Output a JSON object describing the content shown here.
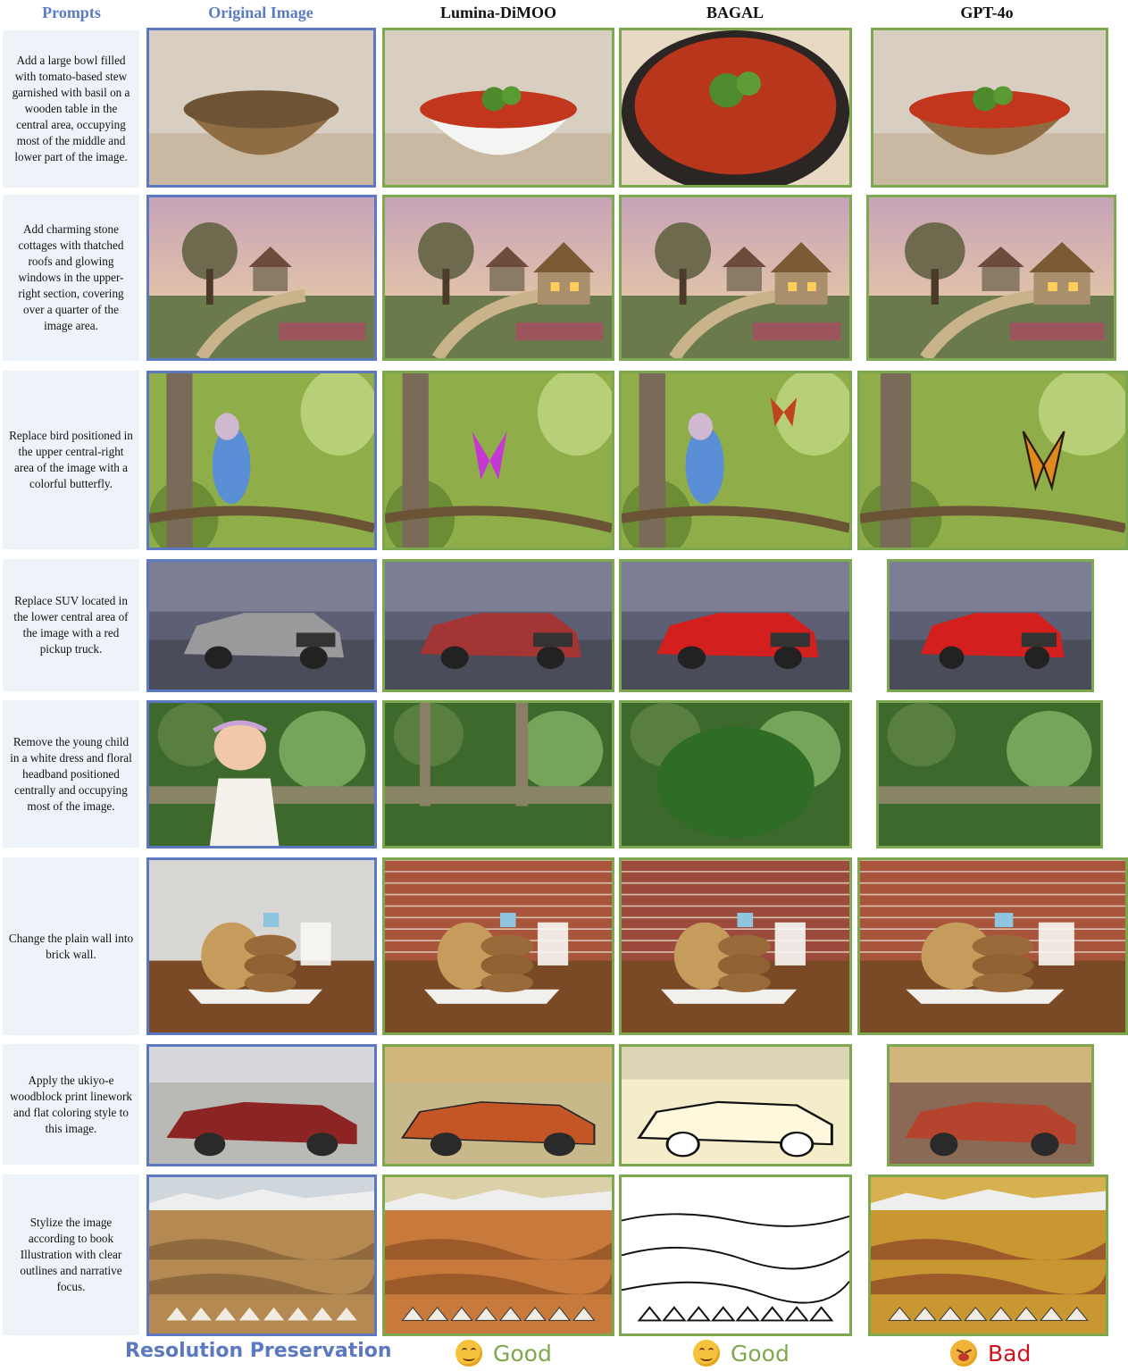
{
  "headers": {
    "prompts": "Prompts",
    "original": "Original Image",
    "models": [
      "Lumina-DiMOO",
      "BAGAL",
      "GPT-4o"
    ]
  },
  "rows": [
    {
      "prompt": "Add a large bowl filled with tomato-based stew garnished with basil on a wooden table in the central area, occupying most of the middle and lower part of the image.",
      "scene": "bowl"
    },
    {
      "prompt": "Add charming stone cottages with thatched roofs and glowing windows in the upper-right section, covering over a quarter of the image area.",
      "scene": "cottage"
    },
    {
      "prompt": "Replace bird positioned in the upper central-right area of the image with a colorful butterfly.",
      "scene": "bird"
    },
    {
      "prompt": "Replace SUV located in the lower central area of the image with a red pickup truck.",
      "scene": "car"
    },
    {
      "prompt": "Remove the young child in a white dress and floral headband positioned centrally and occupying most of the image.",
      "scene": "child"
    },
    {
      "prompt": "Change the plain wall into brick wall.",
      "scene": "cookies"
    },
    {
      "prompt": "Apply the ukiyo-e woodblock print linework and flat coloring style to this image.",
      "scene": "classic-car"
    },
    {
      "prompt": "Stylize the image according to book Illustration with clear outlines and narrative focus.",
      "scene": "desert"
    }
  ],
  "footer": {
    "label": "Resolution Preservation",
    "verdicts": [
      {
        "text": "Good",
        "color": "#7ea84f"
      },
      {
        "text": "Good",
        "color": "#7ea84f"
      },
      {
        "text": "Bad",
        "color": "#d0121b"
      }
    ]
  }
}
